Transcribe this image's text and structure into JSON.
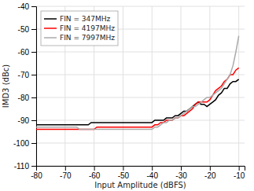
{
  "chart_data": {
    "type": "line",
    "xlabel": "Input Amplitude (dBFS)",
    "ylabel": "IMD3 (dBc)",
    "xlim": [
      -80,
      -8
    ],
    "ylim": [
      -110,
      -40
    ],
    "xticks": [
      -80,
      -70,
      -60,
      -50,
      -40,
      -30,
      -20,
      -10
    ],
    "yticks": [
      -110,
      -100,
      -90,
      -80,
      -70,
      -60,
      -50,
      -40
    ],
    "grid": true,
    "legend": "upper left",
    "x": [
      -80,
      -79,
      -78,
      -77,
      -76,
      -75,
      -74,
      -73,
      -72,
      -71,
      -70,
      -69,
      -68,
      -67,
      -66,
      -65,
      -64,
      -63,
      -62,
      -61,
      -60,
      -59,
      -58,
      -57,
      -56,
      -55,
      -54,
      -53,
      -52,
      -51,
      -50,
      -49,
      -48,
      -47,
      -46,
      -45,
      -44,
      -43,
      -42,
      -41,
      -40,
      -39,
      -38,
      -37,
      -36,
      -35,
      -34,
      -33,
      -32,
      -31,
      -30,
      -29,
      -28,
      -27,
      -26,
      -25,
      -24,
      -23,
      -22,
      -21,
      -20,
      -19,
      -18,
      -17,
      -16,
      -15,
      -14,
      -13,
      -12,
      -11,
      -10
    ],
    "series": [
      {
        "name": "FIN = 347MHz",
        "color": "#000000",
        "values": [
          -92,
          -92,
          -92,
          -92,
          -92,
          -92,
          -92,
          -92,
          -92,
          -92,
          -92,
          -92,
          -92,
          -92,
          -92,
          -92,
          -92,
          -92,
          -92,
          -91,
          -91,
          -91,
          -91,
          -91,
          -91,
          -91,
          -91,
          -91,
          -91,
          -91,
          -91,
          -91,
          -91,
          -91,
          -91,
          -91,
          -91,
          -91,
          -91,
          -91,
          -91,
          -90,
          -90,
          -90,
          -90,
          -89,
          -89,
          -89,
          -88,
          -88,
          -87,
          -86,
          -86,
          -85,
          -84,
          -83,
          -82,
          -83,
          -83,
          -84,
          -83,
          -82,
          -81,
          -79,
          -78,
          -76,
          -76,
          -74,
          -73,
          -73,
          -72
        ]
      },
      {
        "name": "FIN = 4197MHz",
        "color": "#ff0000",
        "values": [
          -94,
          -94,
          -94,
          -94,
          -94,
          -94,
          -94,
          -94,
          -94,
          -94,
          -94,
          -94,
          -94,
          -94,
          -94,
          -94,
          -94,
          -94,
          -94,
          -94,
          -94,
          -93,
          -93,
          -93,
          -93,
          -93,
          -93,
          -93,
          -93,
          -93,
          -93,
          -93,
          -93,
          -93,
          -93,
          -93,
          -93,
          -93,
          -93,
          -93,
          -93,
          -92,
          -92,
          -91,
          -91,
          -90,
          -90,
          -90,
          -89,
          -89,
          -88,
          -88,
          -87,
          -86,
          -85,
          -83,
          -82,
          -82,
          -82,
          -82,
          -81,
          -79,
          -77,
          -76,
          -75,
          -73,
          -72,
          -70,
          -70,
          -68,
          -67
        ]
      },
      {
        "name": "FIN = 7997MHz",
        "color": "#aaaaaa",
        "values": [
          -93,
          -93,
          -93,
          -93,
          -93,
          -93,
          -93,
          -93,
          -93,
          -93,
          -93,
          -93,
          -93,
          -93,
          -93,
          -94,
          -94,
          -94,
          -94,
          -94,
          -94,
          -94,
          -94,
          -94,
          -94,
          -94,
          -94,
          -94,
          -94,
          -94,
          -94,
          -94,
          -94,
          -94,
          -94,
          -94,
          -94,
          -94,
          -94,
          -94,
          -94,
          -93,
          -93,
          -92,
          -91,
          -91,
          -90,
          -90,
          -89,
          -89,
          -88,
          -87,
          -86,
          -85,
          -84,
          -84,
          -83,
          -82,
          -81,
          -80,
          -80,
          -79,
          -78,
          -77,
          -76,
          -74,
          -72,
          -70,
          -66,
          -60,
          -53
        ]
      }
    ]
  }
}
